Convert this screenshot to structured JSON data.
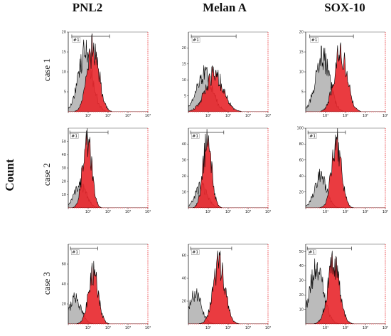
{
  "figure": {
    "column_headers": [
      "PNL2",
      "Melan A",
      "SOX-10"
    ],
    "row_labels": [
      "case 1",
      "case 2",
      "case 3"
    ],
    "y_axis_label": "Count"
  },
  "colors": {
    "control": "#b4b4b4",
    "marker": "#e8262b",
    "outline": "#000000"
  },
  "chart_data": [
    {
      "type": "area",
      "case": "case 1",
      "marker": "PNL2",
      "xscale": "log",
      "xticks": [
        "10⁰",
        "10¹",
        "10²",
        "10³",
        "10⁴"
      ],
      "ylim": [
        0,
        20
      ],
      "yticks": [
        "5",
        "10",
        "15",
        "20"
      ],
      "gate": "#1",
      "gate_range": [
        1.5,
        120
      ],
      "series": [
        {
          "name": "",
          "color": "#b4b4b4",
          "peak": 15,
          "center": 0.85,
          "sigma": 0.35
        },
        {
          "name": "",
          "color": "#e8262b",
          "peak": 16,
          "center": 1.25,
          "sigma": 0.3
        }
      ]
    },
    {
      "type": "area",
      "case": "case 1",
      "marker": "Melan A",
      "xscale": "log",
      "xticks": [
        "10⁰",
        "10¹",
        "10²",
        "10³",
        "10⁴"
      ],
      "ylim": [
        0,
        25
      ],
      "yticks": [
        "5",
        "10",
        "15",
        "20"
      ],
      "gate": "#1",
      "gate_range": [
        1.4,
        250
      ],
      "series": [
        {
          "name": "",
          "color": "#b4b4b4",
          "peak": 12,
          "center": 0.8,
          "sigma": 0.4
        },
        {
          "name": "",
          "color": "#e8262b",
          "peak": 12,
          "center": 1.3,
          "sigma": 0.45
        }
      ]
    },
    {
      "type": "area",
      "case": "case 1",
      "marker": "SOX-10",
      "xscale": "log",
      "xticks": [
        "10⁰",
        "10¹",
        "10²",
        "10³",
        "10⁴"
      ],
      "ylim": [
        0,
        20
      ],
      "yticks": [
        "5",
        "10",
        "15",
        "20"
      ],
      "gate": "#1",
      "gate_range": [
        1.6,
        250
      ],
      "series": [
        {
          "name": "",
          "color": "#b4b4b4",
          "peak": 14,
          "center": 0.85,
          "sigma": 0.35
        },
        {
          "name": "",
          "color": "#e8262b",
          "peak": 15,
          "center": 1.75,
          "sigma": 0.33
        }
      ]
    },
    {
      "type": "area",
      "case": "case 2",
      "marker": "PNL2",
      "xscale": "log",
      "xticks": [
        "10⁰",
        "10¹",
        "10²",
        "10³",
        "10⁴"
      ],
      "ylim": [
        0,
        60
      ],
      "yticks": [
        "10",
        "20",
        "30",
        "40",
        "50"
      ],
      "gate": "#1",
      "gate_range": [
        1.2,
        100
      ],
      "series": [
        {
          "name": "",
          "color": "#b4b4b4",
          "peak": 18,
          "center": 0.6,
          "sigma": 0.3
        },
        {
          "name": "",
          "color": "#e8262b",
          "peak": 55,
          "center": 0.95,
          "sigma": 0.22
        }
      ]
    },
    {
      "type": "area",
      "case": "case 2",
      "marker": "Melan A",
      "xscale": "log",
      "xticks": [
        "10⁰",
        "10¹",
        "10²",
        "10³",
        "10⁴"
      ],
      "ylim": [
        0,
        50
      ],
      "yticks": [
        "10",
        "20",
        "30",
        "40"
      ],
      "gate": "#1",
      "gate_range": [
        1.3,
        60
      ],
      "series": [
        {
          "name": "",
          "color": "#b4b4b4",
          "peak": 14,
          "center": 0.65,
          "sigma": 0.3
        },
        {
          "name": "",
          "color": "#e8262b",
          "peak": 42,
          "center": 0.95,
          "sigma": 0.22
        }
      ]
    },
    {
      "type": "area",
      "case": "case 2",
      "marker": "SOX-10",
      "xscale": "log",
      "xticks": [
        "10⁰",
        "10¹",
        "10²",
        "10³",
        "10⁴"
      ],
      "ylim": [
        0,
        100
      ],
      "yticks": [
        "20",
        "40",
        "60",
        "80",
        "100"
      ],
      "gate": "#1",
      "gate_range": [
        1.3,
        100
      ],
      "series": [
        {
          "name": "",
          "color": "#b4b4b4",
          "peak": 40,
          "center": 0.75,
          "sigma": 0.3
        },
        {
          "name": "",
          "color": "#e8262b",
          "peak": 85,
          "center": 1.55,
          "sigma": 0.25
        }
      ]
    },
    {
      "type": "area",
      "case": "case 3",
      "marker": "PNL2",
      "xscale": "log",
      "xticks": [
        "10⁰",
        "10¹",
        "10²",
        "10³",
        "10⁴"
      ],
      "ylim": [
        0,
        80
      ],
      "yticks": [
        "20",
        "40",
        "60"
      ],
      "gate": "#1",
      "gate_range": [
        1.3,
        30
      ],
      "series": [
        {
          "name": "",
          "color": "#b4b4b4",
          "peak": 26,
          "center": 0.35,
          "sigma": 0.3
        },
        {
          "name": "",
          "color": "#e8262b",
          "peak": 52,
          "center": 1.25,
          "sigma": 0.25
        }
      ]
    },
    {
      "type": "area",
      "case": "case 3",
      "marker": "Melan A",
      "xscale": "log",
      "xticks": [
        "10⁰",
        "10¹",
        "10²",
        "10³",
        "10⁴"
      ],
      "ylim": [
        0,
        70
      ],
      "yticks": [
        "20",
        "40",
        "60"
      ],
      "gate": "#1",
      "gate_range": [
        1.3,
        150
      ],
      "series": [
        {
          "name": "",
          "color": "#b4b4b4",
          "peak": 26,
          "center": 0.35,
          "sigma": 0.3
        },
        {
          "name": "",
          "color": "#e8262b",
          "peak": 54,
          "center": 1.55,
          "sigma": 0.3
        }
      ]
    },
    {
      "type": "area",
      "case": "case 3",
      "marker": "SOX-10",
      "xscale": "log",
      "xticks": [
        "10⁰",
        "10¹",
        "10²",
        "10³",
        "10⁴"
      ],
      "ylim": [
        0,
        55
      ],
      "yticks": [
        "10",
        "20",
        "30",
        "40",
        "50"
      ],
      "gate": "#1",
      "gate_range": [
        1.2,
        200
      ],
      "series": [
        {
          "name": "",
          "color": "#b4b4b4",
          "peak": 38,
          "center": 0.55,
          "sigma": 0.35
        },
        {
          "name": "",
          "color": "#e8262b",
          "peak": 42,
          "center": 1.4,
          "sigma": 0.3
        }
      ]
    }
  ]
}
